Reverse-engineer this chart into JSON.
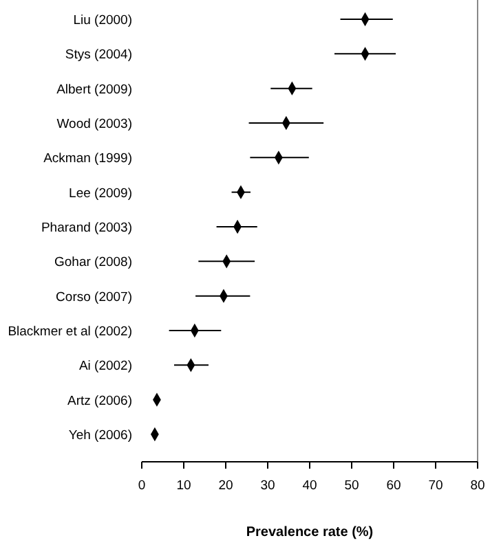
{
  "chart_data": {
    "type": "scatter",
    "orientation": "horizontal",
    "xlabel": "Prevalence rate (%)",
    "categories": [
      "Liu (2000)",
      "Stys (2004)",
      "Albert (2009)",
      "Wood (2003)",
      "Ackman (1999)",
      "Lee (2009)",
      "Pharand (2003)",
      "Gohar (2008)",
      "Corso (2007)",
      "Blackmer et al (2002)",
      "Ai (2002)",
      "Artz (2006)",
      "Yeh (2006)"
    ],
    "values": [
      53.2,
      53.2,
      35.8,
      34.4,
      32.6,
      23.6,
      22.8,
      20.2,
      19.5,
      12.6,
      11.7,
      3.6,
      3.1
    ],
    "errors": [
      [
        47.3,
        59.8
      ],
      [
        45.9,
        60.5
      ],
      [
        30.7,
        40.6
      ],
      [
        25.5,
        43.3
      ],
      [
        25.8,
        39.8
      ],
      [
        21.4,
        25.9
      ],
      [
        17.8,
        27.5
      ],
      [
        13.5,
        26.9
      ],
      [
        12.8,
        25.8
      ],
      [
        6.5,
        18.9
      ],
      [
        7.7,
        15.9
      ],
      null,
      null
    ],
    "color": "#000000",
    "marker": "diamond",
    "xlim": [
      0,
      80
    ],
    "xticks": [
      0,
      10,
      20,
      30,
      40,
      50,
      60,
      70,
      80
    ]
  }
}
